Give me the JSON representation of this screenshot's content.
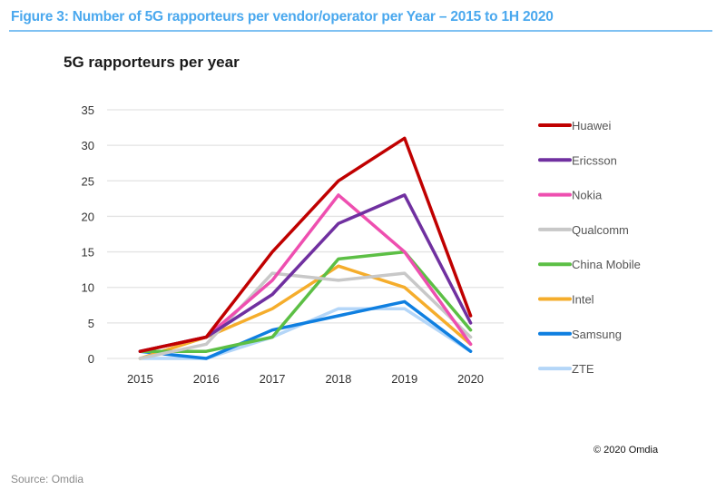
{
  "figure": {
    "title": "Figure 3: Number of 5G rapporteurs per vendor/operator per Year – 2015 to 1H 2020",
    "copyright": "© 2020 Omdia",
    "source": "Source: Omdia",
    "accent_color": "#4aa8ee"
  },
  "chart_data": {
    "type": "line",
    "title": "5G rapporteurs per year",
    "xlabel": "",
    "ylabel": "",
    "x": [
      "2015",
      "2016",
      "2017",
      "2018",
      "2019",
      "2020"
    ],
    "ylim": [
      0,
      35
    ],
    "yticks": [
      0,
      5,
      10,
      15,
      20,
      25,
      30,
      35
    ],
    "grid": true,
    "legend_position": "right",
    "series": [
      {
        "name": "Huawei",
        "color": "#c00000",
        "values": [
          1,
          3,
          15,
          25,
          31,
          6
        ]
      },
      {
        "name": "Ericsson",
        "color": "#7030a0",
        "values": [
          1,
          3,
          9,
          19,
          23,
          5
        ]
      },
      {
        "name": "Nokia",
        "color": "#ee4fb0",
        "values": [
          1,
          3,
          11,
          23,
          15,
          2
        ]
      },
      {
        "name": "Qualcomm",
        "color": "#c8c8c8",
        "values": [
          0,
          2,
          12,
          11,
          12,
          3
        ]
      },
      {
        "name": "China Mobile",
        "color": "#5cbf45",
        "values": [
          1,
          1,
          3,
          14,
          15,
          4
        ]
      },
      {
        "name": "Intel",
        "color": "#f5ad2c",
        "values": [
          0,
          3,
          7,
          13,
          10,
          2
        ]
      },
      {
        "name": "Samsung",
        "color": "#0f7fe0",
        "values": [
          1,
          0,
          4,
          6,
          8,
          1
        ]
      },
      {
        "name": "ZTE",
        "color": "#b4d6f8",
        "values": [
          0,
          0,
          3,
          7,
          7,
          1
        ]
      }
    ]
  }
}
